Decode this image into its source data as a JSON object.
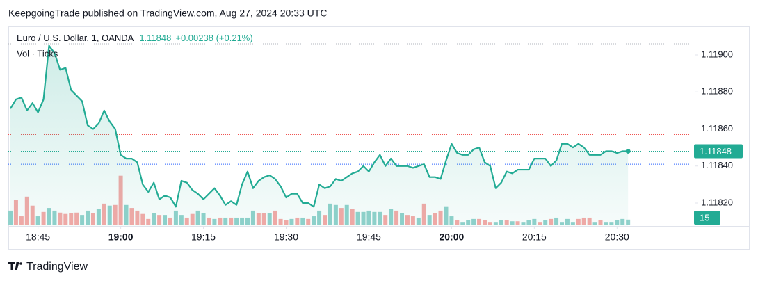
{
  "header": {
    "attribution": "KeepgoingTrade published on TradingView.com, Aug 27, 2024 20:33 UTC",
    "symbol": "Euro / U.S. Dollar, 1, OANDA",
    "last_price": "1.11848",
    "change": "+0.00238 (+0.21%)",
    "volume_legend": "Vol · Ticks"
  },
  "footer": {
    "brand": "TradingView"
  },
  "chart_data": {
    "type": "line",
    "color": "#22ab94",
    "area": true,
    "grid": false,
    "x": [
      "18:40",
      "18:41",
      "18:42",
      "18:43",
      "18:44",
      "18:45",
      "18:46",
      "18:47",
      "18:48",
      "18:49",
      "18:50",
      "18:51",
      "18:52",
      "18:53",
      "18:54",
      "18:55",
      "18:56",
      "18:57",
      "18:58",
      "18:59",
      "19:00",
      "19:01",
      "19:02",
      "19:03",
      "19:04",
      "19:05",
      "19:06",
      "19:07",
      "19:08",
      "19:09",
      "19:10",
      "19:11",
      "19:12",
      "19:13",
      "19:14",
      "19:15",
      "19:16",
      "19:17",
      "19:18",
      "19:19",
      "19:20",
      "19:21",
      "19:22",
      "19:23",
      "19:24",
      "19:25",
      "19:26",
      "19:27",
      "19:28",
      "19:29",
      "19:30",
      "19:31",
      "19:32",
      "19:33",
      "19:34",
      "19:35",
      "19:36",
      "19:37",
      "19:38",
      "19:39",
      "19:40",
      "19:41",
      "19:42",
      "19:43",
      "19:44",
      "19:45",
      "19:46",
      "19:47",
      "19:48",
      "19:49",
      "19:50",
      "19:51",
      "19:52",
      "19:53",
      "19:54",
      "19:55",
      "19:56",
      "19:57",
      "19:58",
      "19:59",
      "20:00",
      "20:01",
      "20:02",
      "20:03",
      "20:04",
      "20:05",
      "20:06",
      "20:07",
      "20:08",
      "20:09",
      "20:10",
      "20:11",
      "20:12",
      "20:13",
      "20:14",
      "20:15",
      "20:16",
      "20:17",
      "20:18",
      "20:19",
      "20:20",
      "20:21",
      "20:22",
      "20:23",
      "20:24",
      "20:25",
      "20:26",
      "20:27",
      "20:28",
      "20:29",
      "20:30",
      "20:31",
      "20:32"
    ],
    "series": [
      {
        "name": "EURUSD",
        "color": "#22ab94",
        "values": [
          1.11871,
          1.11876,
          1.11877,
          1.1187,
          1.11874,
          1.11869,
          1.11876,
          1.11905,
          1.11901,
          1.11892,
          1.11893,
          1.11881,
          1.11878,
          1.11875,
          1.11862,
          1.1186,
          1.11863,
          1.1187,
          1.11864,
          1.1186,
          1.11846,
          1.11844,
          1.11844,
          1.11842,
          1.1183,
          1.11826,
          1.11831,
          1.11822,
          1.11824,
          1.11823,
          1.11818,
          1.11832,
          1.11831,
          1.11827,
          1.11825,
          1.11822,
          1.11825,
          1.11828,
          1.11824,
          1.11819,
          1.11821,
          1.11819,
          1.1183,
          1.11837,
          1.11828,
          1.11832,
          1.11834,
          1.11835,
          1.11833,
          1.11829,
          1.11823,
          1.11825,
          1.11825,
          1.1182,
          1.1182,
          1.11818,
          1.1183,
          1.11828,
          1.11829,
          1.11833,
          1.11832,
          1.11834,
          1.11836,
          1.11837,
          1.1184,
          1.11837,
          1.11842,
          1.11846,
          1.1184,
          1.11844,
          1.1184,
          1.1184,
          1.1184,
          1.11839,
          1.1184,
          1.11841,
          1.11834,
          1.11834,
          1.11833,
          1.11843,
          1.11852,
          1.11847,
          1.11846,
          1.11846,
          1.11849,
          1.1185,
          1.11842,
          1.1184,
          1.11828,
          1.11831,
          1.11837,
          1.11836,
          1.11838,
          1.11838,
          1.11838,
          1.11844,
          1.11844,
          1.11844,
          1.1184,
          1.11843,
          1.11852,
          1.11852,
          1.1185,
          1.11852,
          1.1185,
          1.11846,
          1.11846,
          1.11846,
          1.11848,
          1.11848,
          1.11847,
          1.11848,
          1.11848
        ]
      }
    ],
    "volume": {
      "name": "Vol",
      "ylim": [
        0,
        600
      ],
      "values": [
        42,
        74,
        25,
        84,
        57,
        25,
        38,
        50,
        42,
        36,
        32,
        34,
        36,
        29,
        42,
        34,
        46,
        63,
        57,
        59,
        147,
        59,
        50,
        42,
        32,
        17,
        34,
        29,
        29,
        21,
        42,
        29,
        21,
        32,
        42,
        34,
        21,
        17,
        21,
        21,
        21,
        21,
        21,
        21,
        42,
        34,
        34,
        34,
        42,
        17,
        13,
        17,
        21,
        21,
        17,
        25,
        42,
        29,
        63,
        59,
        50,
        59,
        46,
        38,
        38,
        42,
        38,
        38,
        29,
        46,
        42,
        34,
        29,
        25,
        21,
        63,
        29,
        34,
        42,
        55,
        25,
        13,
        8,
        13,
        17,
        17,
        13,
        8,
        8,
        13,
        13,
        10,
        10,
        8,
        13,
        17,
        8,
        13,
        17,
        21,
        8,
        17,
        8,
        17,
        21,
        21,
        8,
        13,
        8,
        8,
        13,
        17,
        15
      ],
      "colors": [
        "#92d2cc",
        "#f7a9a7",
        "#f7a9a7",
        "#f7a9a7",
        "#f7a9a7",
        "#92d2cc",
        "#f7a9a7",
        "#92d2cc",
        "#92d2cc",
        "#f7a9a7",
        "#f7a9a7",
        "#f7a9a7",
        "#f7a9a7",
        "#92d2cc",
        "#92d2cc",
        "#f7a9a7",
        "#92d2cc",
        "#f7a9a7",
        "#92d2cc",
        "#f7a9a7",
        "#f7a9a7",
        "#92d2cc",
        "#f7a9a7",
        "#f7a9a7",
        "#f7a9a7",
        "#f7a9a7",
        "#92d2cc",
        "#f7a9a7",
        "#92d2cc",
        "#f7a9a7",
        "#92d2cc",
        "#92d2cc",
        "#f7a9a7",
        "#f7a9a7",
        "#92d2cc",
        "#92d2cc",
        "#f7a9a7",
        "#92d2cc",
        "#f7a9a7",
        "#92d2cc",
        "#f7a9a7",
        "#92d2cc",
        "#92d2cc",
        "#92d2cc",
        "#92d2cc",
        "#f7a9a7",
        "#f7a9a7",
        "#92d2cc",
        "#f7a9a7",
        "#f7a9a7",
        "#f7a9a7",
        "#92d2cc",
        "#f7a9a7",
        "#92d2cc",
        "#f7a9a7",
        "#92d2cc",
        "#92d2cc",
        "#f7a9a7",
        "#92d2cc",
        "#92d2cc",
        "#f7a9a7",
        "#92d2cc",
        "#f7a9a7",
        "#92d2cc",
        "#92d2cc",
        "#92d2cc",
        "#92d2cc",
        "#92d2cc",
        "#f7a9a7",
        "#92d2cc",
        "#f7a9a7",
        "#92d2cc",
        "#f7a9a7",
        "#f7a9a7",
        "#92d2cc",
        "#f7a9a7",
        "#92d2cc",
        "#f7a9a7",
        "#f7a9a7",
        "#92d2cc",
        "#92d2cc",
        "#f7a9a7",
        "#92d2cc",
        "#92d2cc",
        "#92d2cc",
        "#f7a9a7",
        "#f7a9a7",
        "#f7a9a7",
        "#92d2cc",
        "#92d2cc",
        "#f7a9a7",
        "#92d2cc",
        "#f7a9a7",
        "#92d2cc",
        "#92d2cc",
        "#92d2cc",
        "#f7a9a7",
        "#92d2cc",
        "#f7a9a7",
        "#92d2cc",
        "#92d2cc",
        "#92d2cc",
        "#92d2cc",
        "#f7a9a7",
        "#f7a9a7",
        "#f7a9a7",
        "#92d2cc",
        "#f7a9a7",
        "#92d2cc",
        "#92d2cc",
        "#92d2cc",
        "#92d2cc",
        "#92d2cc"
      ]
    },
    "price_lines": [
      {
        "value": 1.11906,
        "color": "#b2b5be"
      },
      {
        "value": 1.11857,
        "color": "#ef5350"
      },
      {
        "value": 1.11841,
        "color": "#2962ff"
      }
    ],
    "ylim": [
      1.118076,
      1.119154
    ],
    "yticks": [
      {
        "value": 1.1182,
        "label": "1.11820"
      },
      {
        "value": 1.1184,
        "label": "1.11840"
      },
      {
        "value": 1.1186,
        "label": "1.11860"
      },
      {
        "value": 1.1188,
        "label": "1.11880"
      },
      {
        "value": 1.119,
        "label": "1.11900"
      }
    ],
    "xticks": [
      "18:45",
      "19:00",
      "19:15",
      "19:30",
      "19:45",
      "20:00",
      "20:15",
      "20:30"
    ]
  }
}
